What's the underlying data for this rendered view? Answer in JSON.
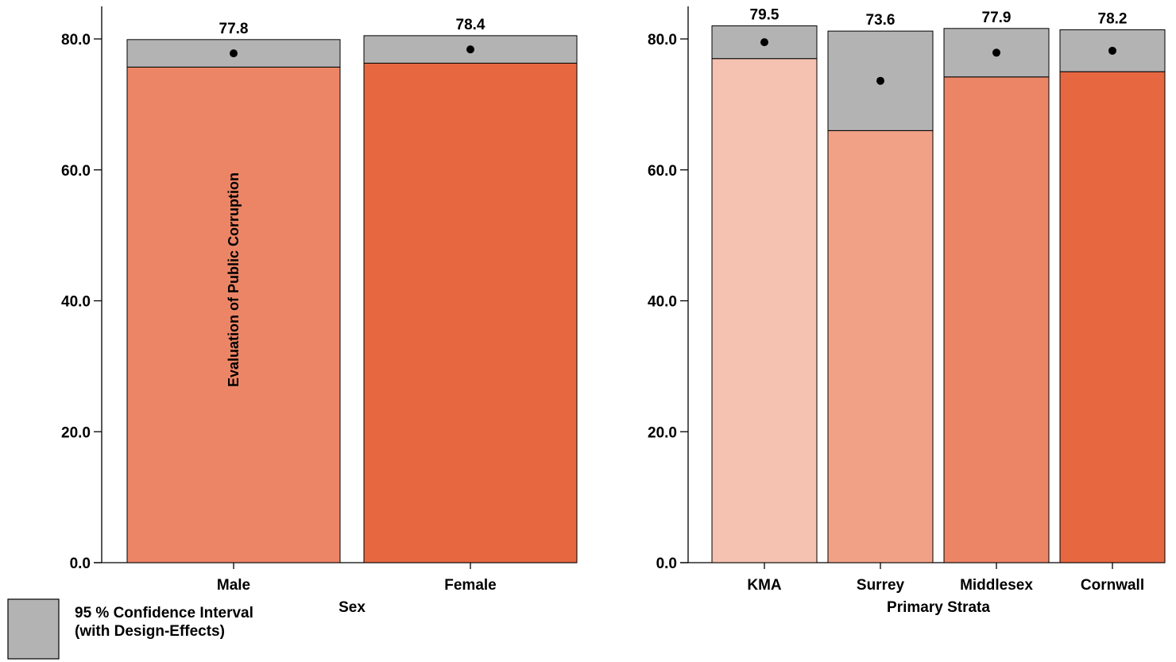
{
  "legend": {
    "line1": "95 % Confidence Interval",
    "line2": "(with Design-Effects)",
    "color": "#b3b3b3"
  },
  "colors": {
    "ci": "#b3b3b3",
    "palette": [
      "#f5c1b0",
      "#f1a286",
      "#ec8566",
      "#e66740"
    ]
  },
  "chart_data": [
    {
      "type": "bar",
      "categories": [
        "Male",
        "Female"
      ],
      "values": [
        77.8,
        78.4
      ],
      "ci_lower": [
        75.7,
        76.3
      ],
      "ci_upper": [
        79.9,
        80.5
      ],
      "value_labels": [
        "77.8",
        "78.4"
      ],
      "bar_colors": [
        "#ec8566",
        "#e66740"
      ],
      "xlabel": "Sex",
      "ylabel": "Evaluation of Public Corruption",
      "ylim": [
        0,
        80
      ],
      "yticks": [
        "0.0",
        "20.0",
        "40.0",
        "60.0",
        "80.0"
      ],
      "grid": false
    },
    {
      "type": "bar",
      "categories": [
        "KMA",
        "Surrey",
        "Middlesex",
        "Cornwall"
      ],
      "values": [
        79.5,
        73.6,
        77.9,
        78.2
      ],
      "ci_lower": [
        77.0,
        66.0,
        74.2,
        75.0
      ],
      "ci_upper": [
        82.0,
        81.2,
        81.6,
        81.4
      ],
      "value_labels": [
        "79.5",
        "73.6",
        "77.9",
        "78.2"
      ],
      "bar_colors": [
        "#f5c1b0",
        "#f1a286",
        "#ec8566",
        "#e66740"
      ],
      "xlabel": "Primary Strata",
      "ylabel": "",
      "ylim": [
        0,
        80
      ],
      "yticks": [
        "0.0",
        "20.0",
        "40.0",
        "60.0",
        "80.0"
      ],
      "grid": false
    }
  ]
}
